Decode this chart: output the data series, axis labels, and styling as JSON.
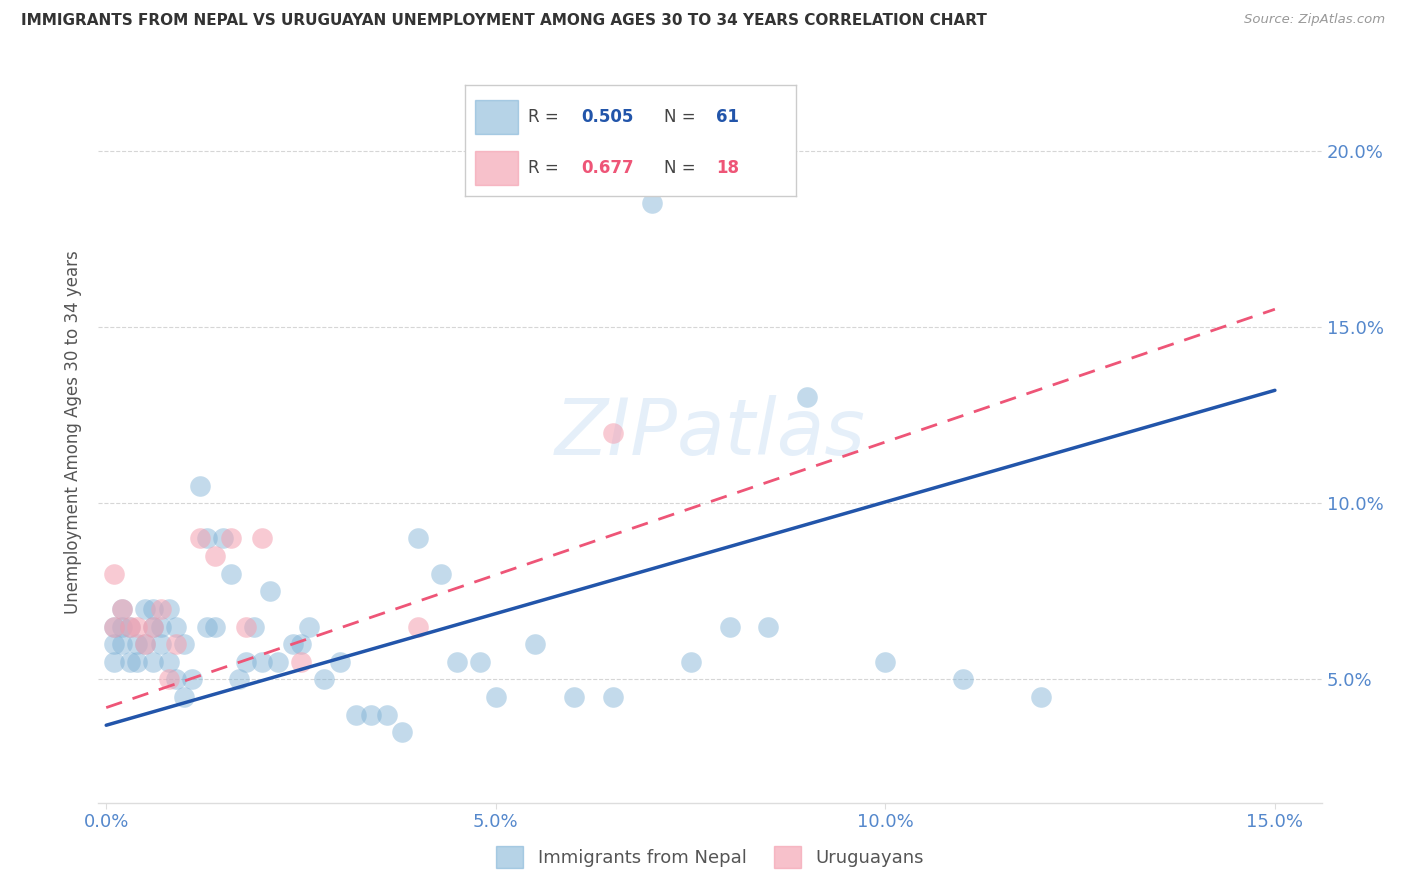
{
  "title": "IMMIGRANTS FROM NEPAL VS URUGUAYAN UNEMPLOYMENT AMONG AGES 30 TO 34 YEARS CORRELATION CHART",
  "source": "Source: ZipAtlas.com",
  "ylabel": "Unemployment Among Ages 30 to 34 years",
  "xlim": [
    -0.001,
    0.156
  ],
  "ylim": [
    0.015,
    0.225
  ],
  "watermark": "ZIPatlas",
  "legend_r1": "0.505",
  "legend_n1": "61",
  "legend_r2": "0.677",
  "legend_n2": "18",
  "series1_label": "Immigrants from Nepal",
  "series2_label": "Uruguayans",
  "blue_scatter_color": "#7BAFD4",
  "pink_scatter_color": "#F4A0B0",
  "blue_line_color": "#2255AA",
  "pink_line_color": "#EE5577",
  "title_color": "#333333",
  "axis_tick_color": "#5588CC",
  "ylabel_color": "#555555",
  "background_color": "#FFFFFF",
  "grid_color": "#CCCCCC",
  "nepal_x": [
    0.001,
    0.001,
    0.001,
    0.002,
    0.002,
    0.002,
    0.003,
    0.003,
    0.004,
    0.004,
    0.005,
    0.005,
    0.006,
    0.006,
    0.006,
    0.007,
    0.007,
    0.008,
    0.008,
    0.009,
    0.009,
    0.01,
    0.01,
    0.011,
    0.012,
    0.013,
    0.013,
    0.014,
    0.015,
    0.016,
    0.017,
    0.018,
    0.019,
    0.02,
    0.021,
    0.022,
    0.024,
    0.025,
    0.026,
    0.028,
    0.03,
    0.032,
    0.034,
    0.036,
    0.038,
    0.04,
    0.043,
    0.045,
    0.048,
    0.05,
    0.055,
    0.06,
    0.065,
    0.07,
    0.075,
    0.08,
    0.085,
    0.09,
    0.1,
    0.11,
    0.12
  ],
  "nepal_y": [
    0.055,
    0.065,
    0.06,
    0.07,
    0.065,
    0.06,
    0.065,
    0.055,
    0.06,
    0.055,
    0.07,
    0.06,
    0.065,
    0.055,
    0.07,
    0.06,
    0.065,
    0.07,
    0.055,
    0.065,
    0.05,
    0.06,
    0.045,
    0.05,
    0.105,
    0.09,
    0.065,
    0.065,
    0.09,
    0.08,
    0.05,
    0.055,
    0.065,
    0.055,
    0.075,
    0.055,
    0.06,
    0.06,
    0.065,
    0.05,
    0.055,
    0.04,
    0.04,
    0.04,
    0.035,
    0.09,
    0.08,
    0.055,
    0.055,
    0.045,
    0.06,
    0.045,
    0.045,
    0.185,
    0.055,
    0.065,
    0.065,
    0.13,
    0.055,
    0.05,
    0.045
  ],
  "uruguay_x": [
    0.001,
    0.001,
    0.002,
    0.003,
    0.004,
    0.005,
    0.006,
    0.007,
    0.008,
    0.009,
    0.012,
    0.014,
    0.016,
    0.018,
    0.02,
    0.025,
    0.04,
    0.065
  ],
  "uruguay_y": [
    0.065,
    0.08,
    0.07,
    0.065,
    0.065,
    0.06,
    0.065,
    0.07,
    0.05,
    0.06,
    0.09,
    0.085,
    0.09,
    0.065,
    0.09,
    0.055,
    0.065,
    0.12
  ],
  "nepal_line": [
    [
      0.0,
      0.15
    ],
    [
      0.037,
      0.132
    ]
  ],
  "uruguay_line": [
    [
      0.0,
      0.15
    ],
    [
      0.042,
      0.155
    ]
  ]
}
